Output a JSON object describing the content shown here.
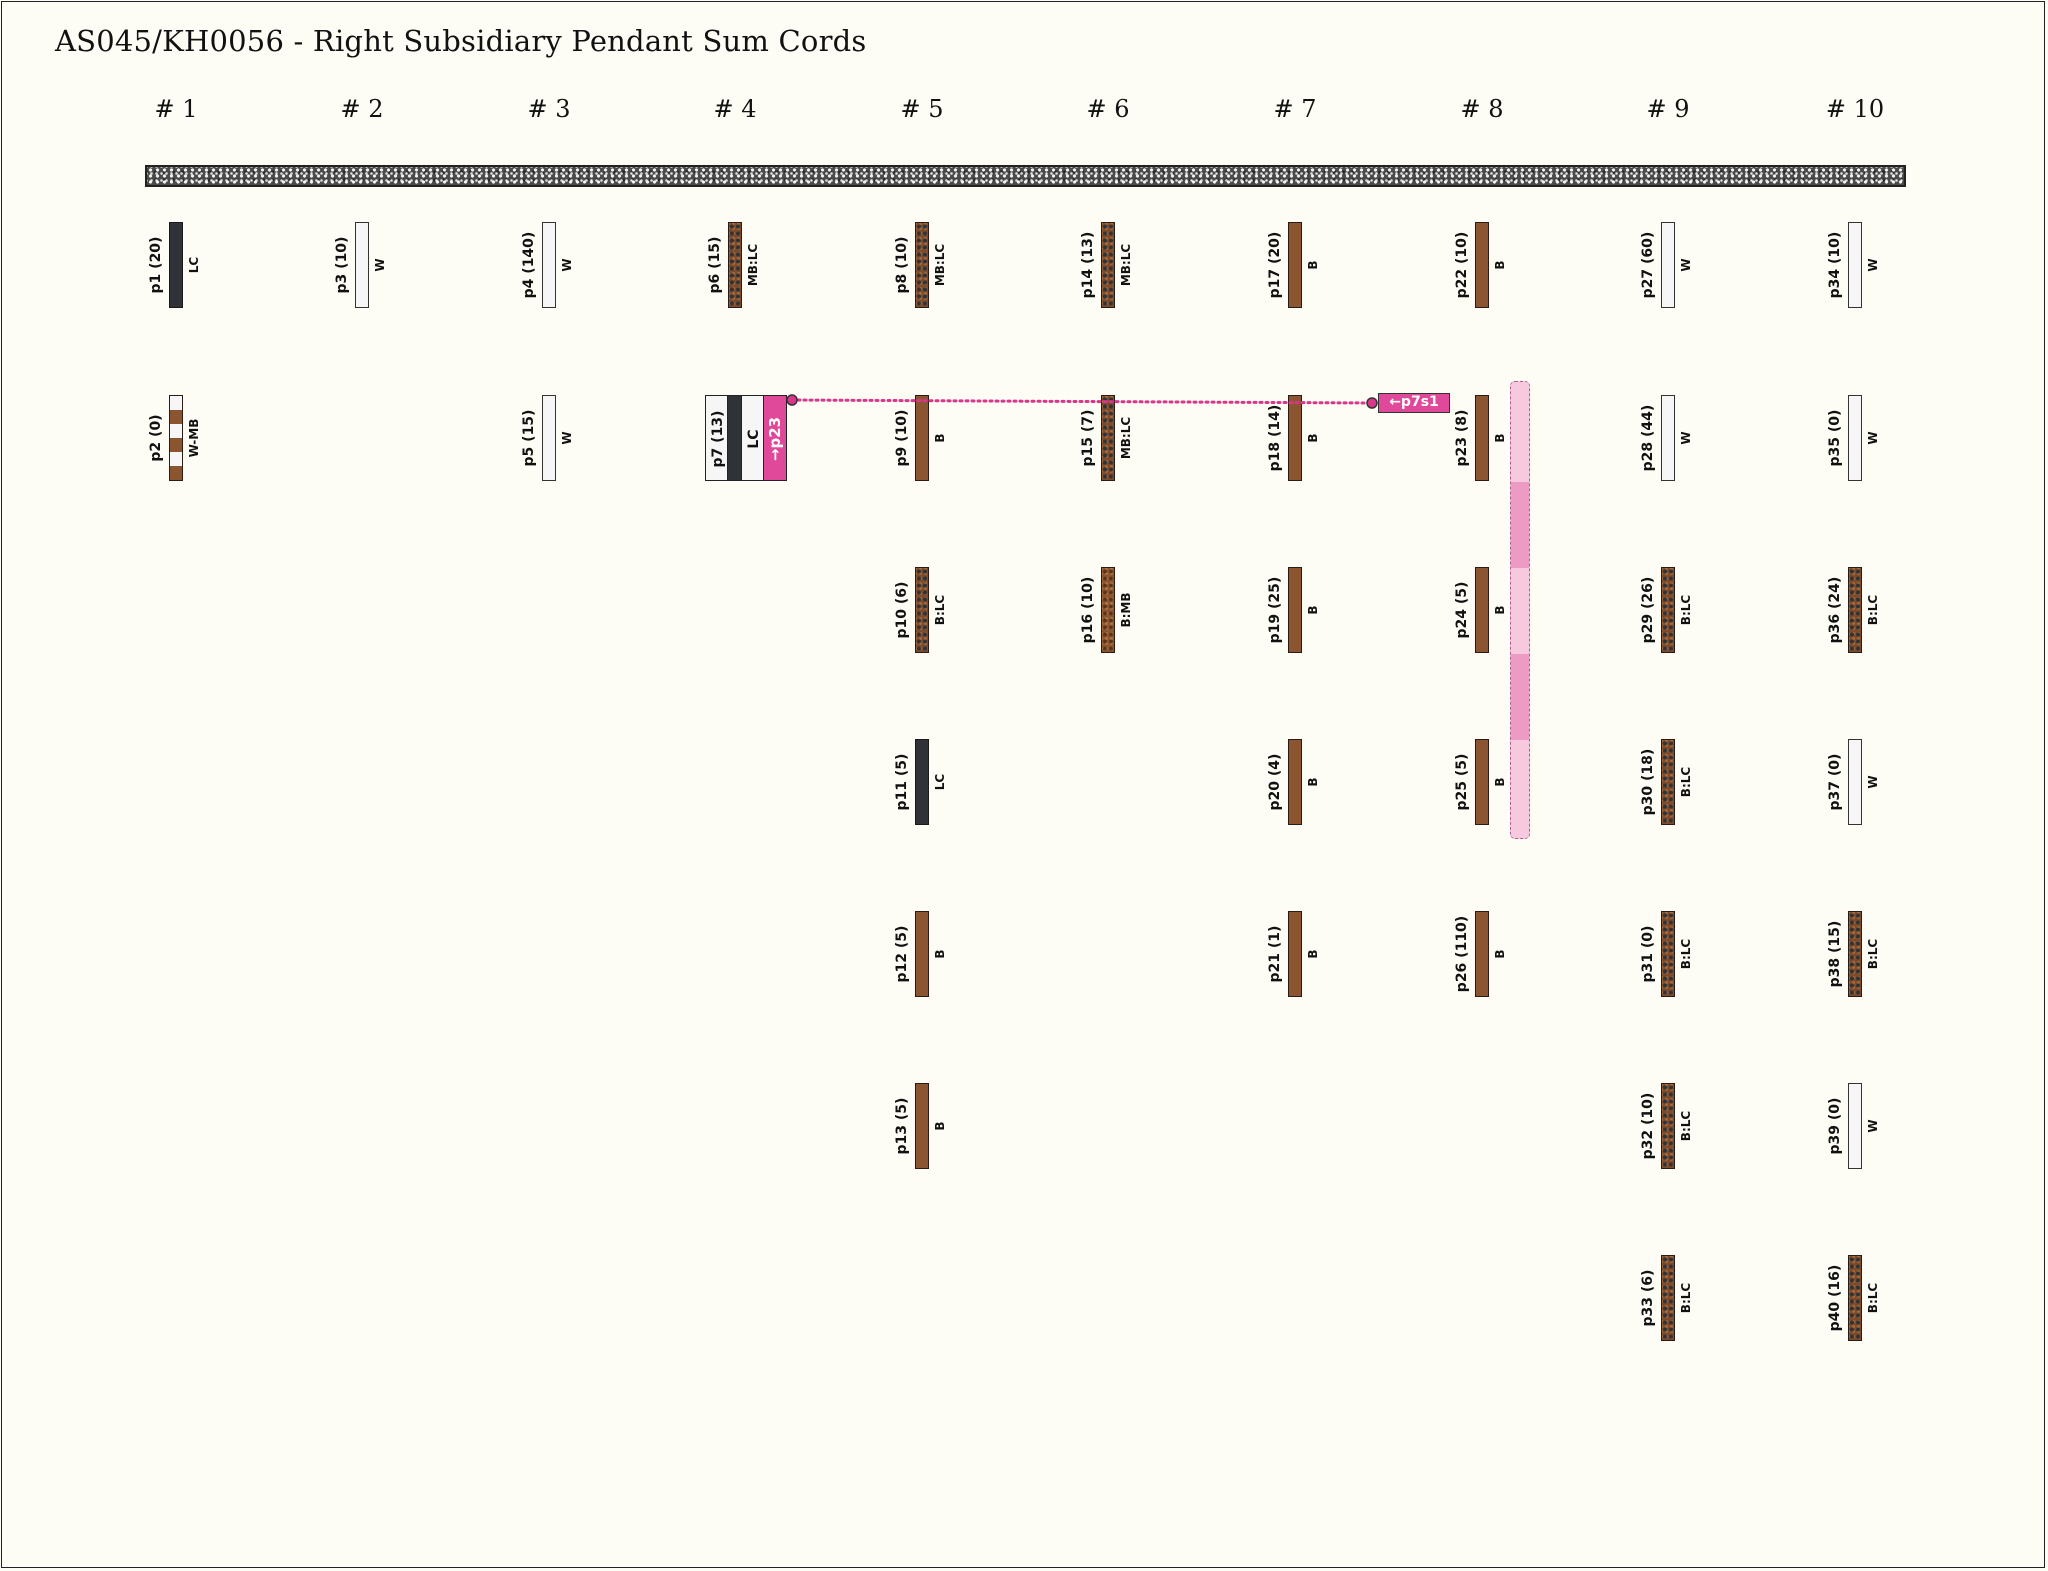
{
  "title": "AS045/KH0056 - Right Subsidiary Pendant Sum Cords",
  "groups": [
    "# 1",
    "# 2",
    "# 3",
    "# 4",
    "# 5",
    "# 6",
    "# 7",
    "# 8",
    "# 9",
    "# 10"
  ],
  "colors": {
    "B": "#8a5530",
    "W": "#f6f6f6",
    "LC": "#2f3337",
    "link": "#d8378b"
  },
  "cords": [
    {
      "id": "p1",
      "label": "p1 (20)",
      "color": "LC",
      "group": 1,
      "row": 1
    },
    {
      "id": "p2",
      "label": "p2 (0)",
      "color": "W-MB",
      "group": 1,
      "row": 2
    },
    {
      "id": "p3",
      "label": "p3 (10)",
      "color": "W",
      "group": 2,
      "row": 1
    },
    {
      "id": "p4",
      "label": "p4 (140)",
      "color": "W",
      "group": 3,
      "row": 1
    },
    {
      "id": "p5",
      "label": "p5 (15)",
      "color": "W",
      "group": 3,
      "row": 2
    },
    {
      "id": "p6",
      "label": "p6 (15)",
      "color": "MB:LC",
      "group": 4,
      "row": 1
    },
    {
      "id": "p8",
      "label": "p8 (10)",
      "color": "MB:LC",
      "group": 5,
      "row": 1
    },
    {
      "id": "p9",
      "label": "p9 (10)",
      "color": "B",
      "group": 5,
      "row": 2
    },
    {
      "id": "p10",
      "label": "p10 (6)",
      "color": "B:LC",
      "group": 5,
      "row": 3
    },
    {
      "id": "p11",
      "label": "p11 (5)",
      "color": "LC",
      "group": 5,
      "row": 4
    },
    {
      "id": "p12",
      "label": "p12 (5)",
      "color": "B",
      "group": 5,
      "row": 5
    },
    {
      "id": "p13",
      "label": "p13 (5)",
      "color": "B",
      "group": 5,
      "row": 6
    },
    {
      "id": "p14",
      "label": "p14 (13)",
      "color": "MB:LC",
      "group": 6,
      "row": 1
    },
    {
      "id": "p15",
      "label": "p15 (7)",
      "color": "MB:LC",
      "group": 6,
      "row": 2
    },
    {
      "id": "p16",
      "label": "p16 (10)",
      "color": "B:MB",
      "group": 6,
      "row": 3
    },
    {
      "id": "p17",
      "label": "p17 (20)",
      "color": "B",
      "group": 7,
      "row": 1
    },
    {
      "id": "p18",
      "label": "p18 (14)",
      "color": "B",
      "group": 7,
      "row": 2
    },
    {
      "id": "p19",
      "label": "p19 (25)",
      "color": "B",
      "group": 7,
      "row": 3
    },
    {
      "id": "p20",
      "label": "p20 (4)",
      "color": "B",
      "group": 7,
      "row": 4
    },
    {
      "id": "p21",
      "label": "p21 (1)",
      "color": "B",
      "group": 7,
      "row": 5
    },
    {
      "id": "p22",
      "label": "p22 (10)",
      "color": "B",
      "group": 8,
      "row": 1
    },
    {
      "id": "p23",
      "label": "p23 (8)",
      "color": "B",
      "group": 8,
      "row": 2
    },
    {
      "id": "p24",
      "label": "p24 (5)",
      "color": "B",
      "group": 8,
      "row": 3
    },
    {
      "id": "p25",
      "label": "p25 (5)",
      "color": "B",
      "group": 8,
      "row": 4
    },
    {
      "id": "p26",
      "label": "p26 (110)",
      "color": "B",
      "group": 8,
      "row": 5
    },
    {
      "id": "p27",
      "label": "p27 (60)",
      "color": "W",
      "group": 9,
      "row": 1
    },
    {
      "id": "p28",
      "label": "p28 (44)",
      "color": "W",
      "group": 9,
      "row": 2
    },
    {
      "id": "p29",
      "label": "p29 (26)",
      "color": "B:LC",
      "group": 9,
      "row": 3
    },
    {
      "id": "p30",
      "label": "p30 (18)",
      "color": "B:LC",
      "group": 9,
      "row": 4
    },
    {
      "id": "p31",
      "label": "p31 (0)",
      "color": "B:LC",
      "group": 9,
      "row": 5
    },
    {
      "id": "p32",
      "label": "p32 (10)",
      "color": "B:LC",
      "group": 9,
      "row": 6
    },
    {
      "id": "p33",
      "label": "p33 (6)",
      "color": "B:LC",
      "group": 9,
      "row": 7
    },
    {
      "id": "p34",
      "label": "p34 (10)",
      "color": "W",
      "group": 10,
      "row": 1
    },
    {
      "id": "p35",
      "label": "p35 (0)",
      "color": "W",
      "group": 10,
      "row": 2
    },
    {
      "id": "p36",
      "label": "p36 (24)",
      "color": "B:LC",
      "group": 10,
      "row": 3
    },
    {
      "id": "p37",
      "label": "p37 (0)",
      "color": "W",
      "group": 10,
      "row": 4
    },
    {
      "id": "p38",
      "label": "p38 (15)",
      "color": "B:LC",
      "group": 10,
      "row": 5
    },
    {
      "id": "p39",
      "label": "p39 (0)",
      "color": "W",
      "group": 10,
      "row": 6
    },
    {
      "id": "p40",
      "label": "p40 (16)",
      "color": "B:LC",
      "group": 10,
      "row": 7
    }
  ],
  "special": {
    "p7_label": "p7 (13)",
    "p7_color": "LC",
    "p7_link": "→p23",
    "p7s1_label": "←p7s1"
  }
}
